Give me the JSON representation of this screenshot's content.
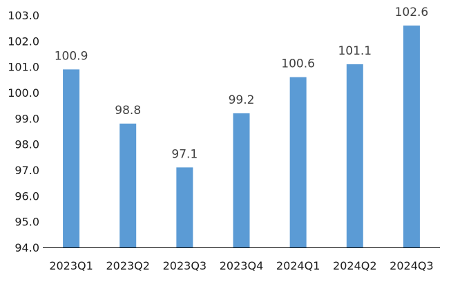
{
  "chart_data": {
    "type": "bar",
    "title": "",
    "xlabel": "",
    "ylabel": "",
    "categories": [
      "2023Q1",
      "2023Q2",
      "2023Q3",
      "2023Q4",
      "2024Q1",
      "2024Q2",
      "2024Q3"
    ],
    "values": [
      100.9,
      98.8,
      97.1,
      99.2,
      100.6,
      101.1,
      102.6
    ],
    "data_labels": [
      "100.9",
      "98.8",
      "97.1",
      "99.2",
      "100.6",
      "101.1",
      "102.6"
    ],
    "ylim": [
      94.0,
      103.0
    ],
    "yticks": [
      "94.0",
      "95.0",
      "96.0",
      "97.0",
      "98.0",
      "99.0",
      "100.0",
      "101.0",
      "102.0",
      "103.0"
    ],
    "ytick_values": [
      94,
      95,
      96,
      97,
      98,
      99,
      100,
      101,
      102,
      103
    ],
    "grid": false,
    "legend": "none",
    "bar_color": "#5B9BD5",
    "axis_color": "#000000"
  }
}
